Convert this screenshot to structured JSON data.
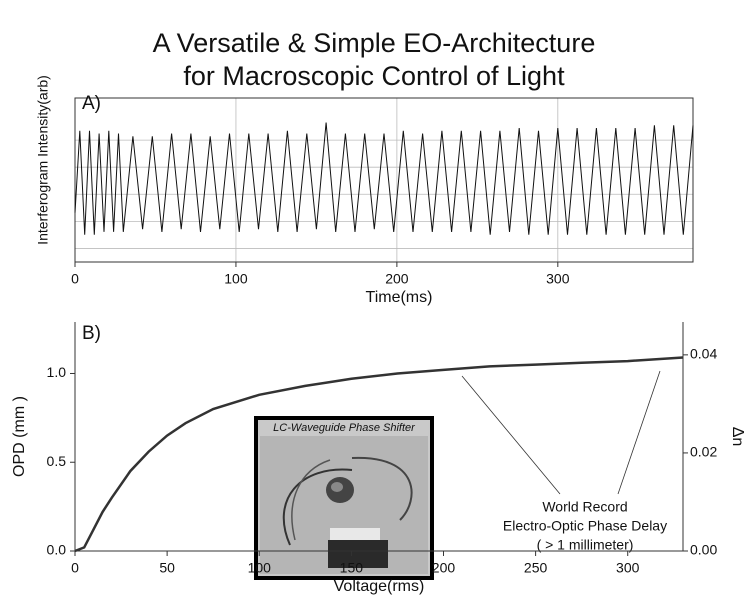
{
  "title": [
    "A Versatile & Simple EO-Architecture",
    "for Macroscopic Control of Light"
  ],
  "chart_data": [
    {
      "type": "line",
      "panel_label": "A)",
      "x_label": "Time(ms)",
      "y_label": "Interferogram Intensity(arb)",
      "xlim": [
        0,
        384
      ],
      "xticks": [
        0,
        100,
        200,
        300
      ],
      "ylim": [
        -1.5,
        1.5
      ],
      "grid": true,
      "series": [
        {
          "color": "#111111",
          "x": [
            0,
            3,
            6,
            9,
            12,
            15,
            18,
            21,
            24,
            27,
            30,
            36,
            42,
            48,
            54,
            60,
            66,
            72,
            78,
            84,
            90,
            96,
            102,
            108,
            114,
            120,
            126,
            132,
            138,
            144,
            150,
            156,
            162,
            168,
            174,
            180,
            186,
            192,
            198,
            204,
            210,
            216,
            222,
            228,
            234,
            240,
            246,
            252,
            258,
            264,
            270,
            276,
            282,
            288,
            294,
            300,
            306,
            312,
            318,
            324,
            330,
            336,
            342,
            348,
            354,
            360,
            366,
            372,
            378,
            384
          ],
          "values": [
            -0.6,
            0.9,
            -1.0,
            0.9,
            -1.0,
            0.85,
            -0.95,
            0.9,
            -0.95,
            0.85,
            -0.95,
            0.8,
            -0.9,
            0.8,
            -0.95,
            0.85,
            -0.9,
            0.85,
            -0.95,
            0.8,
            -0.9,
            0.85,
            -0.95,
            0.85,
            -0.9,
            0.85,
            -0.95,
            0.9,
            -0.95,
            0.85,
            -0.9,
            1.05,
            -0.95,
            0.85,
            -0.95,
            0.85,
            -0.9,
            0.85,
            -0.95,
            0.9,
            -0.95,
            0.85,
            -0.95,
            0.9,
            -0.95,
            0.9,
            -0.95,
            0.9,
            -1.0,
            0.9,
            -0.95,
            0.95,
            -1.0,
            0.9,
            -1.0,
            0.95,
            -1.0,
            0.95,
            -1.0,
            0.95,
            -1.0,
            0.95,
            -1.0,
            0.95,
            -1.0,
            1.0,
            -1.0,
            1.0,
            -1.0,
            1.0
          ]
        }
      ]
    },
    {
      "type": "line",
      "panel_label": "B)",
      "x_label": "Voltage(rms)",
      "y_label": "OPD (mm )",
      "y2_label": "Δn",
      "xlim": [
        0,
        330
      ],
      "xticks": [
        0,
        50,
        100,
        150,
        200,
        250,
        300
      ],
      "ylim": [
        0,
        1.29
      ],
      "yticks": [
        {
          "value": 0,
          "label": "0.0"
        },
        {
          "value": 0.5,
          "label": "0.5"
        },
        {
          "value": 1,
          "label": "1.0"
        }
      ],
      "y2lim": [
        0,
        0.0467
      ],
      "y2ticks": [
        {
          "value": 0,
          "label": "0.00"
        },
        {
          "value": 0.02,
          "label": "0.02"
        },
        {
          "value": 0.04,
          "label": "0.04"
        }
      ],
      "grid": false,
      "series": [
        {
          "color": "#333333",
          "x": [
            0,
            5,
            10,
            15,
            20,
            30,
            40,
            50,
            60,
            75,
            100,
            125,
            150,
            175,
            200,
            225,
            250,
            275,
            300,
            330
          ],
          "values": [
            0,
            0.02,
            0.12,
            0.22,
            0.3,
            0.45,
            0.56,
            0.65,
            0.72,
            0.8,
            0.88,
            0.93,
            0.97,
            1.0,
            1.02,
            1.04,
            1.05,
            1.06,
            1.07,
            1.09
          ]
        }
      ],
      "annotations": [
        "World Record",
        "Electro-Optic Phase Delay",
        "( > 1 millimeter)"
      ],
      "inset_label": "LC-Waveguide Phase Shifter"
    }
  ]
}
